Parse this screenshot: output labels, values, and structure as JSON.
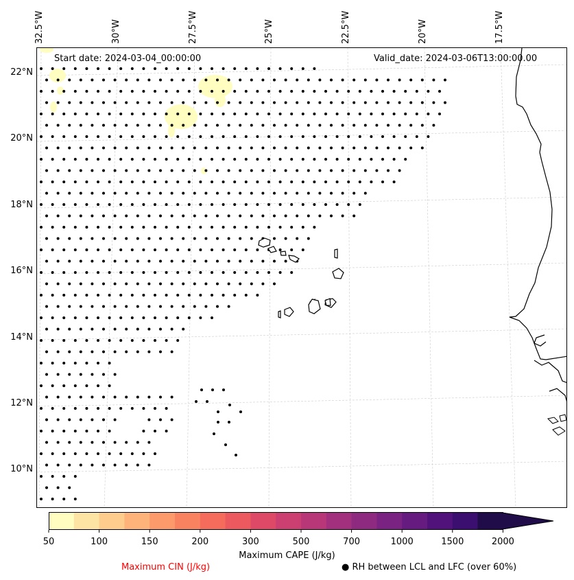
{
  "map": {
    "longitude_labels": [
      "32.5°W",
      "30°W",
      "27.5°W",
      "25°W",
      "22.5°W",
      "20°W",
      "17.5°W"
    ],
    "longitude_values": [
      -32.5,
      -30,
      -27.5,
      -25,
      -22.5,
      -20,
      -17.5
    ],
    "latitude_labels": [
      "22°N",
      "20°N",
      "18°N",
      "16°N",
      "14°N",
      "12°N",
      "10°N"
    ],
    "latitude_values": [
      22,
      20,
      18,
      16,
      14,
      12,
      10
    ],
    "start_date": "Start date: 2024-03-04_00:00:00",
    "valid_date": "Valid_date: 2024-03-06T13:00:00.00"
  },
  "colorbar": {
    "tick_labels": [
      "50",
      "100",
      "150",
      "200",
      "300",
      "500",
      "700",
      "1000",
      "1500",
      "2000"
    ],
    "levels": [
      50,
      75,
      100,
      125,
      150,
      175,
      200,
      250,
      300,
      400,
      500,
      600,
      700,
      850,
      1000,
      1250,
      1500,
      1750,
      2000
    ],
    "colors": [
      "#fffdbf",
      "#fee4a4",
      "#fecc8c",
      "#feb37a",
      "#fc9a6b",
      "#f98361",
      "#f56c5c",
      "#ec5a5f",
      "#de4968",
      "#cc3f71",
      "#b83779",
      "#a3307e",
      "#8f2a81",
      "#7b2382",
      "#661b80",
      "#51127c",
      "#3b0f70",
      "#1f0c48"
    ],
    "label": "Maximum CAPE (J/kg)",
    "cin_label": "Maximum CIN (J/kg)",
    "cin_color": "#ff0000",
    "rh_marker": "●",
    "rh_label": "RH between LCL and LFC (over 60%)"
  }
}
